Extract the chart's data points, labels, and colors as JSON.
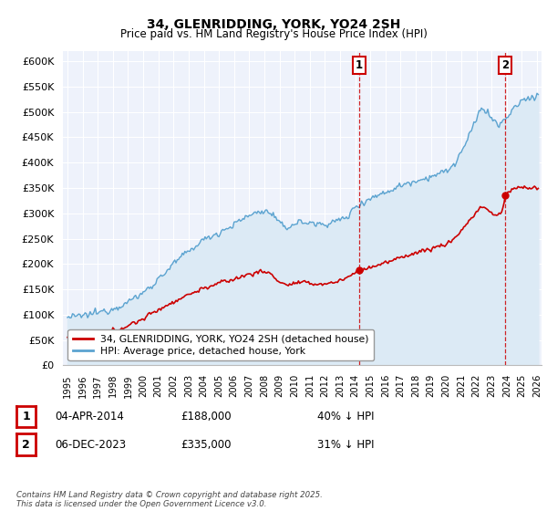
{
  "title": "34, GLENRIDDING, YORK, YO24 2SH",
  "subtitle": "Price paid vs. HM Land Registry's House Price Index (HPI)",
  "ylim": [
    0,
    620000
  ],
  "yticks": [
    0,
    50000,
    100000,
    150000,
    200000,
    250000,
    300000,
    350000,
    400000,
    450000,
    500000,
    550000,
    600000
  ],
  "ytick_labels": [
    "£0",
    "£50K",
    "£100K",
    "£150K",
    "£200K",
    "£250K",
    "£300K",
    "£350K",
    "£400K",
    "£450K",
    "£500K",
    "£550K",
    "£600K"
  ],
  "hpi_color": "#5ba3d0",
  "hpi_fill_color": "#dceaf5",
  "price_color": "#cc0000",
  "vline_color": "#cc0000",
  "sale1_date": 2014.27,
  "sale1_price": 188000,
  "sale2_date": 2023.92,
  "sale2_price": 335000,
  "legend_line1": "34, GLENRIDDING, YORK, YO24 2SH (detached house)",
  "legend_line2": "HPI: Average price, detached house, York",
  "footer": "Contains HM Land Registry data © Crown copyright and database right 2025.\nThis data is licensed under the Open Government Licence v3.0.",
  "background_color": "#ffffff",
  "plot_bg_color": "#eef2fb",
  "grid_color": "#ffffff",
  "xlim_left": 1994.7,
  "xlim_right": 2026.3
}
